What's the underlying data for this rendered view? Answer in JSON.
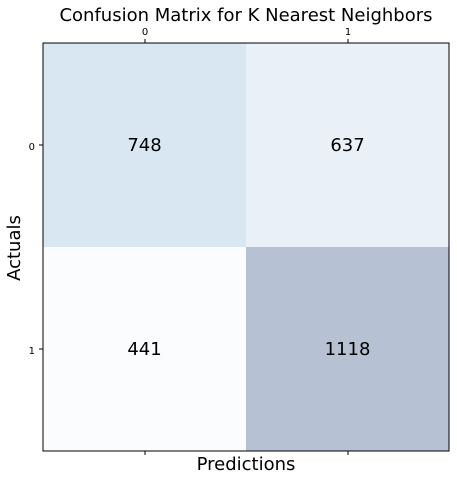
{
  "chart_data": {
    "type": "heatmap",
    "title": "Confusion Matrix for K Nearest Neighbors",
    "xlabel": "Predictions",
    "ylabel": "Actuals",
    "x_categories": [
      "0",
      "1"
    ],
    "y_categories": [
      "0",
      "1"
    ],
    "values": [
      [
        748,
        637
      ],
      [
        441,
        1118
      ]
    ],
    "x_tick_position": "top",
    "colormap": "Blues-reversed",
    "grid": false,
    "cell_colors": [
      [
        "#d8e7f2",
        "#eaf0f7"
      ],
      [
        "#fbfcfe",
        "#b6c1d4"
      ]
    ]
  }
}
